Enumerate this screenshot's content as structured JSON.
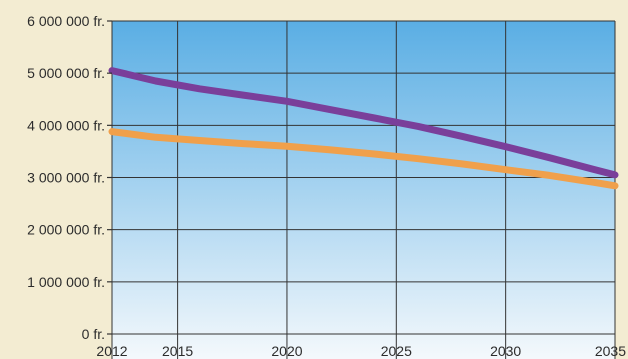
{
  "chart_data": {
    "type": "line",
    "x": [
      2012,
      2014,
      2016,
      2018,
      2020,
      2022,
      2024,
      2026,
      2028,
      2030,
      2032,
      2034,
      2035
    ],
    "series": [
      {
        "color": "#7a3f9a",
        "values": [
          5050000,
          4850000,
          4700000,
          4580000,
          4460000,
          4300000,
          4140000,
          3980000,
          3790000,
          3590000,
          3380000,
          3160000,
          3050000
        ]
      },
      {
        "color": "#f0a04b",
        "values": [
          3880000,
          3770000,
          3710000,
          3650000,
          3600000,
          3530000,
          3450000,
          3360000,
          3260000,
          3150000,
          3040000,
          2910000,
          2840000
        ]
      }
    ],
    "xlim": [
      2012,
      2035
    ],
    "ylim": [
      0,
      6000000
    ],
    "xticks": [
      2012,
      2015,
      2020,
      2025,
      2030,
      2035
    ],
    "xtick_labels": [
      "2012",
      "2015",
      "2020",
      "2025",
      "2030",
      "2035"
    ],
    "yticks": [
      0,
      1000000,
      2000000,
      3000000,
      4000000,
      5000000,
      6000000
    ],
    "ytick_labels": [
      "0 fr.",
      "1 000 000 fr.",
      "2 000 000 fr.",
      "3 000 000 fr.",
      "4 000 000 fr.",
      "5 000 000 fr.",
      "6 000 000 fr."
    ],
    "grid": true,
    "colors": {
      "background_top": "#5aaee4",
      "background_bottom": "#f5f9fc",
      "grid": "#333333"
    }
  }
}
